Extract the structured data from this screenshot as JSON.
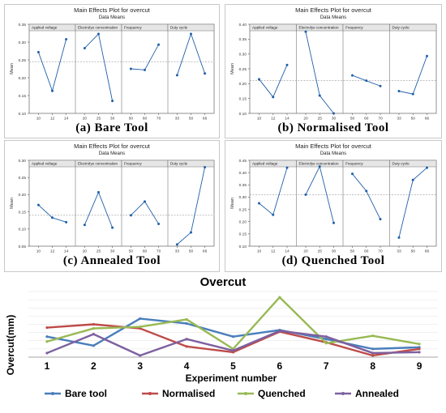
{
  "chart_data": [
    {
      "type": "line",
      "title": "Main Effects Plot for overcut",
      "subtitle": "Data Means",
      "ylabel": "Mean",
      "caption": "(a) Bare Tool",
      "ylim": [
        0.1,
        0.35
      ],
      "yticks": [
        "0.10",
        "0.15",
        "0.20",
        "0.25",
        "0.30",
        "0.35"
      ],
      "reference_mean": 0.245,
      "factors": [
        {
          "name": "Applied voltage",
          "levels": [
            "10",
            "12",
            "14"
          ],
          "values": [
            0.272,
            0.163,
            0.308
          ]
        },
        {
          "name": "Electrolye concentration",
          "levels": [
            "20",
            "25",
            "30"
          ],
          "values": [
            0.283,
            0.323,
            0.135
          ]
        },
        {
          "name": "Frequency",
          "levels": [
            "50",
            "60",
            "70"
          ],
          "values": [
            0.225,
            0.222,
            0.293
          ]
        },
        {
          "name": "Duty cycle",
          "levels": [
            "33",
            "50",
            "66"
          ],
          "values": [
            0.207,
            0.323,
            0.212
          ]
        }
      ]
    },
    {
      "type": "line",
      "title": "Main Effects Plot for overcut",
      "subtitle": "Data Means",
      "ylabel": "Mean",
      "caption": "(b) Normalised Tool",
      "ylim": [
        0.1,
        0.4
      ],
      "yticks": [
        "0.10",
        "0.15",
        "0.20",
        "0.25",
        "0.30",
        "0.35",
        "0.40"
      ],
      "reference_mean": 0.21,
      "factors": [
        {
          "name": "Applied voltage",
          "levels": [
            "10",
            "12",
            "14"
          ],
          "values": [
            0.215,
            0.155,
            0.263
          ]
        },
        {
          "name": "Electrolye concentration",
          "levels": [
            "20",
            "25",
            "30"
          ],
          "values": [
            0.375,
            0.16,
            0.1
          ]
        },
        {
          "name": "Frequency",
          "levels": [
            "50",
            "60",
            "70"
          ],
          "values": [
            0.228,
            0.21,
            0.192
          ]
        },
        {
          "name": "Duty cycle",
          "levels": [
            "33",
            "50",
            "66"
          ],
          "values": [
            0.175,
            0.165,
            0.293
          ]
        }
      ]
    },
    {
      "type": "line",
      "title": "Main Effects Plot for overcut",
      "subtitle": "Data Means",
      "ylabel": "Mean",
      "caption": "(c) Annealed Tool",
      "ylim": [
        0.05,
        0.3
      ],
      "yticks": [
        "0.05",
        "0.10",
        "0.15",
        "0.20",
        "0.25",
        "0.30"
      ],
      "reference_mean": 0.14,
      "factors": [
        {
          "name": "Applied voltage",
          "levels": [
            "10",
            "12",
            "14"
          ],
          "values": [
            0.17,
            0.133,
            0.12
          ]
        },
        {
          "name": "Electrolye concentration",
          "levels": [
            "20",
            "25",
            "30"
          ],
          "values": [
            0.112,
            0.207,
            0.104
          ]
        },
        {
          "name": "Frequency",
          "levels": [
            "50",
            "60",
            "70"
          ],
          "values": [
            0.14,
            0.18,
            0.115
          ]
        },
        {
          "name": "Duty cycle",
          "levels": [
            "33",
            "50",
            "66"
          ],
          "values": [
            0.055,
            0.09,
            0.28
          ]
        }
      ]
    },
    {
      "type": "line",
      "title": "Main Effects Plot for overcut",
      "subtitle": "Data Means",
      "ylabel": "Mean",
      "caption": "(d) Quenched Tool",
      "ylim": [
        0.1,
        0.45
      ],
      "yticks": [
        "0.10",
        "0.15",
        "0.20",
        "0.25",
        "0.30",
        "0.35",
        "0.40",
        "0.45"
      ],
      "reference_mean": 0.31,
      "factors": [
        {
          "name": "Applied voltage",
          "levels": [
            "10",
            "12",
            "14"
          ],
          "values": [
            0.275,
            0.228,
            0.42
          ]
        },
        {
          "name": "Electrolye concentration",
          "levels": [
            "20",
            "25",
            "30"
          ],
          "values": [
            0.31,
            0.425,
            0.195
          ]
        },
        {
          "name": "Frequency",
          "levels": [
            "50",
            "60",
            "70"
          ],
          "values": [
            0.395,
            0.325,
            0.21
          ]
        },
        {
          "name": "Duty cycle",
          "levels": [
            "33",
            "50",
            "66"
          ],
          "values": [
            0.135,
            0.37,
            0.42
          ]
        }
      ]
    },
    {
      "type": "line",
      "title": "Overcut",
      "xlabel": "Experiment number",
      "ylabel": "Overcut(mm)",
      "x": [
        1,
        2,
        3,
        4,
        5,
        6,
        7,
        8,
        9
      ],
      "ylim": [
        0,
        0.8
      ],
      "legend_position": "bottom",
      "series": [
        {
          "name": "Bare tool",
          "color": "#4a7ebb",
          "values": [
            0.25,
            0.14,
            0.47,
            0.41,
            0.25,
            0.33,
            0.22,
            0.1,
            0.12
          ]
        },
        {
          "name": "Normalised",
          "color": "#be4b48",
          "values": [
            0.36,
            0.4,
            0.35,
            0.13,
            0.06,
            0.31,
            0.18,
            0.02,
            0.1
          ]
        },
        {
          "name": "Quenched",
          "color": "#98b954",
          "values": [
            0.19,
            0.35,
            0.37,
            0.46,
            0.1,
            0.73,
            0.17,
            0.26,
            0.16
          ]
        },
        {
          "name": "Annealed",
          "color": "#7d60a0",
          "values": [
            0.05,
            0.28,
            0.02,
            0.22,
            0.08,
            0.32,
            0.25,
            0.05,
            0.06
          ]
        }
      ]
    }
  ]
}
